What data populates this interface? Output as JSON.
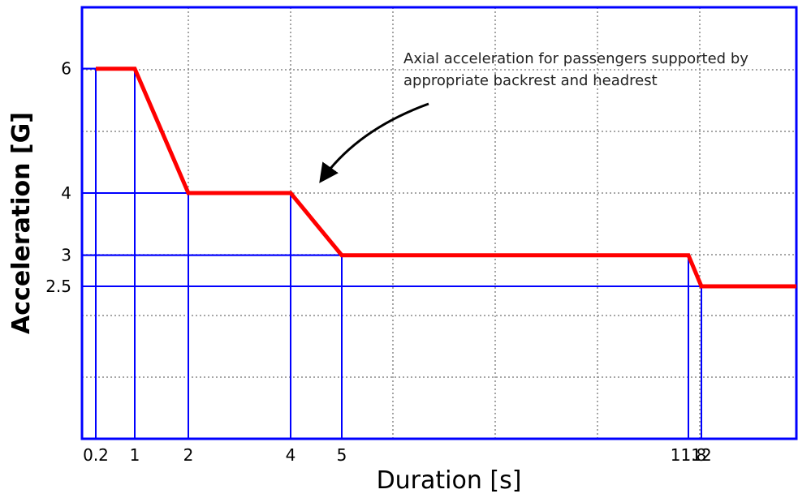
{
  "chart_data": {
    "type": "line",
    "xlabel": "Duration [s]",
    "ylabel": "Acceleration [G]",
    "xlim": [
      0,
      15
    ],
    "ylim": [
      -0.5,
      7.1
    ],
    "grid": true,
    "x_ticks": [
      {
        "value": 0.2,
        "label": "0.2"
      },
      {
        "value": 1,
        "label": "1"
      },
      {
        "value": 2,
        "label": "2"
      },
      {
        "value": 4,
        "label": "4"
      },
      {
        "value": 5,
        "label": "5"
      },
      {
        "value": 11.8,
        "label": "11.8"
      },
      {
        "value": 12,
        "label": "12"
      }
    ],
    "y_ticks": [
      {
        "value": 6,
        "label": "6"
      },
      {
        "value": 4,
        "label": "4"
      },
      {
        "value": 3,
        "label": "3"
      },
      {
        "value": 2.5,
        "label": "2.5"
      }
    ],
    "series": [
      {
        "color": "#ff0000",
        "points": [
          {
            "x": 0.2,
            "y": 6
          },
          {
            "x": 1,
            "y": 6
          },
          {
            "x": 2,
            "y": 4
          },
          {
            "x": 4,
            "y": 4
          },
          {
            "x": 5,
            "y": 3
          },
          {
            "x": 11.8,
            "y": 3
          },
          {
            "x": 12,
            "y": 2.5
          },
          {
            "x": 15,
            "y": 2.5
          }
        ]
      }
    ],
    "reference_lines": [
      {
        "x": 0.2,
        "y": 6
      },
      {
        "x": 1,
        "y": 6
      },
      {
        "x": 2,
        "y": 4
      },
      {
        "x": 4,
        "y": 4
      },
      {
        "x": 5,
        "y": 3
      },
      {
        "x": 11.8,
        "y": 3
      },
      {
        "x": 12,
        "y": 2.5
      }
    ],
    "annotation": {
      "lines": [
        "Axial acceleration for passengers supported by",
        "appropriate backrest and headrest"
      ]
    }
  },
  "colors": {
    "curve": "#ff0000",
    "frame": "#0000ff",
    "reference": "#0000ff",
    "grid": "#888888",
    "text": "#000000"
  }
}
